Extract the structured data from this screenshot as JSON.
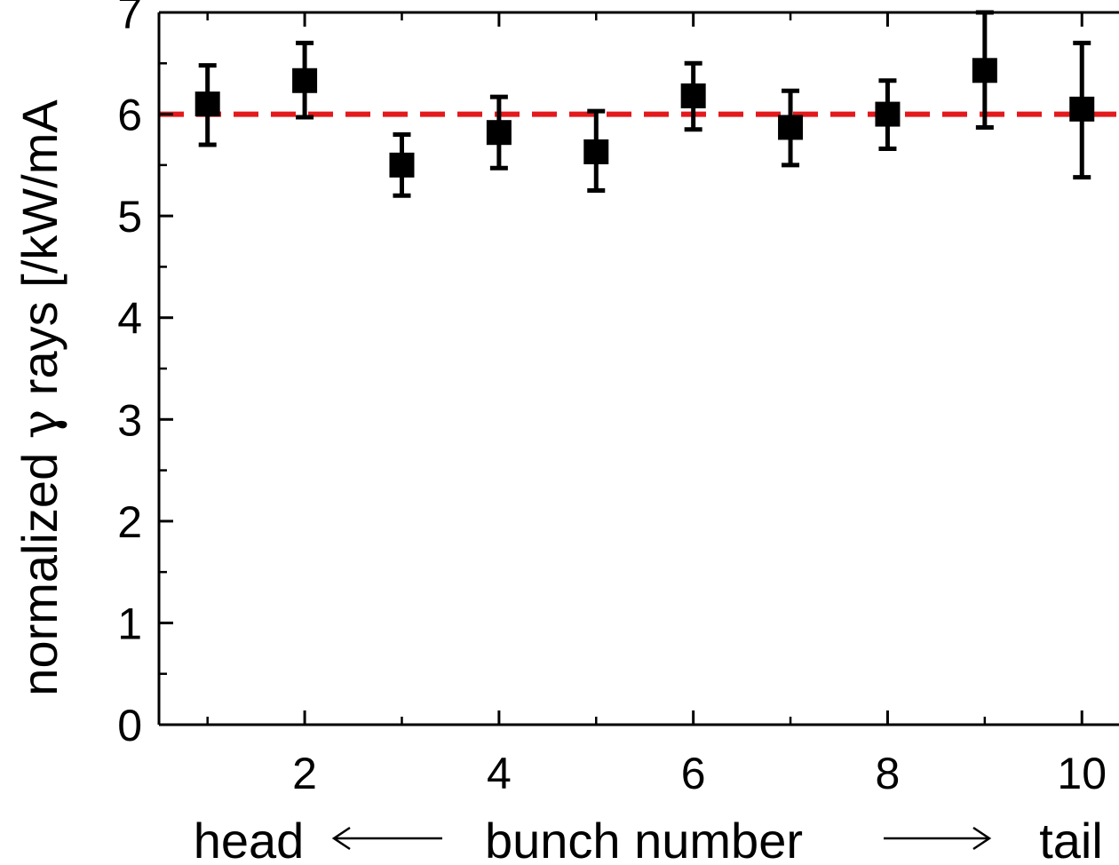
{
  "chart_data": {
    "type": "scatter",
    "title": "",
    "xlabel": "bunch number",
    "xlabel_left": "head",
    "xlabel_right": "tail",
    "ylabel_parts": {
      "before": "normalized ",
      "symbol": "γ",
      "after": " rays [/kW/mA"
    },
    "xlim": [
      0.5,
      10.4
    ],
    "ylim": [
      0,
      7
    ],
    "x_ticks": [
      2,
      4,
      6,
      8,
      10
    ],
    "x_minor_ticks": [
      1,
      3,
      5,
      7,
      9
    ],
    "y_ticks": [
      0,
      1,
      2,
      3,
      4,
      5,
      6,
      7
    ],
    "grid": false,
    "series": [
      {
        "x": [
          1,
          2,
          3,
          4,
          5,
          6,
          7,
          8,
          9,
          10
        ],
        "y": [
          6.1,
          6.33,
          5.5,
          5.82,
          5.63,
          6.18,
          5.87,
          6.0,
          6.43,
          6.05
        ],
        "y_low": [
          5.7,
          5.97,
          5.2,
          5.47,
          5.25,
          5.85,
          5.5,
          5.66,
          5.87,
          5.38
        ],
        "y_high": [
          6.48,
          6.7,
          5.8,
          6.17,
          6.03,
          6.5,
          6.23,
          6.33,
          7.0,
          6.7
        ],
        "color": "#000000"
      }
    ],
    "reference_line": {
      "y": 6.0,
      "style": "dashed",
      "color": "#e31a1c"
    }
  }
}
